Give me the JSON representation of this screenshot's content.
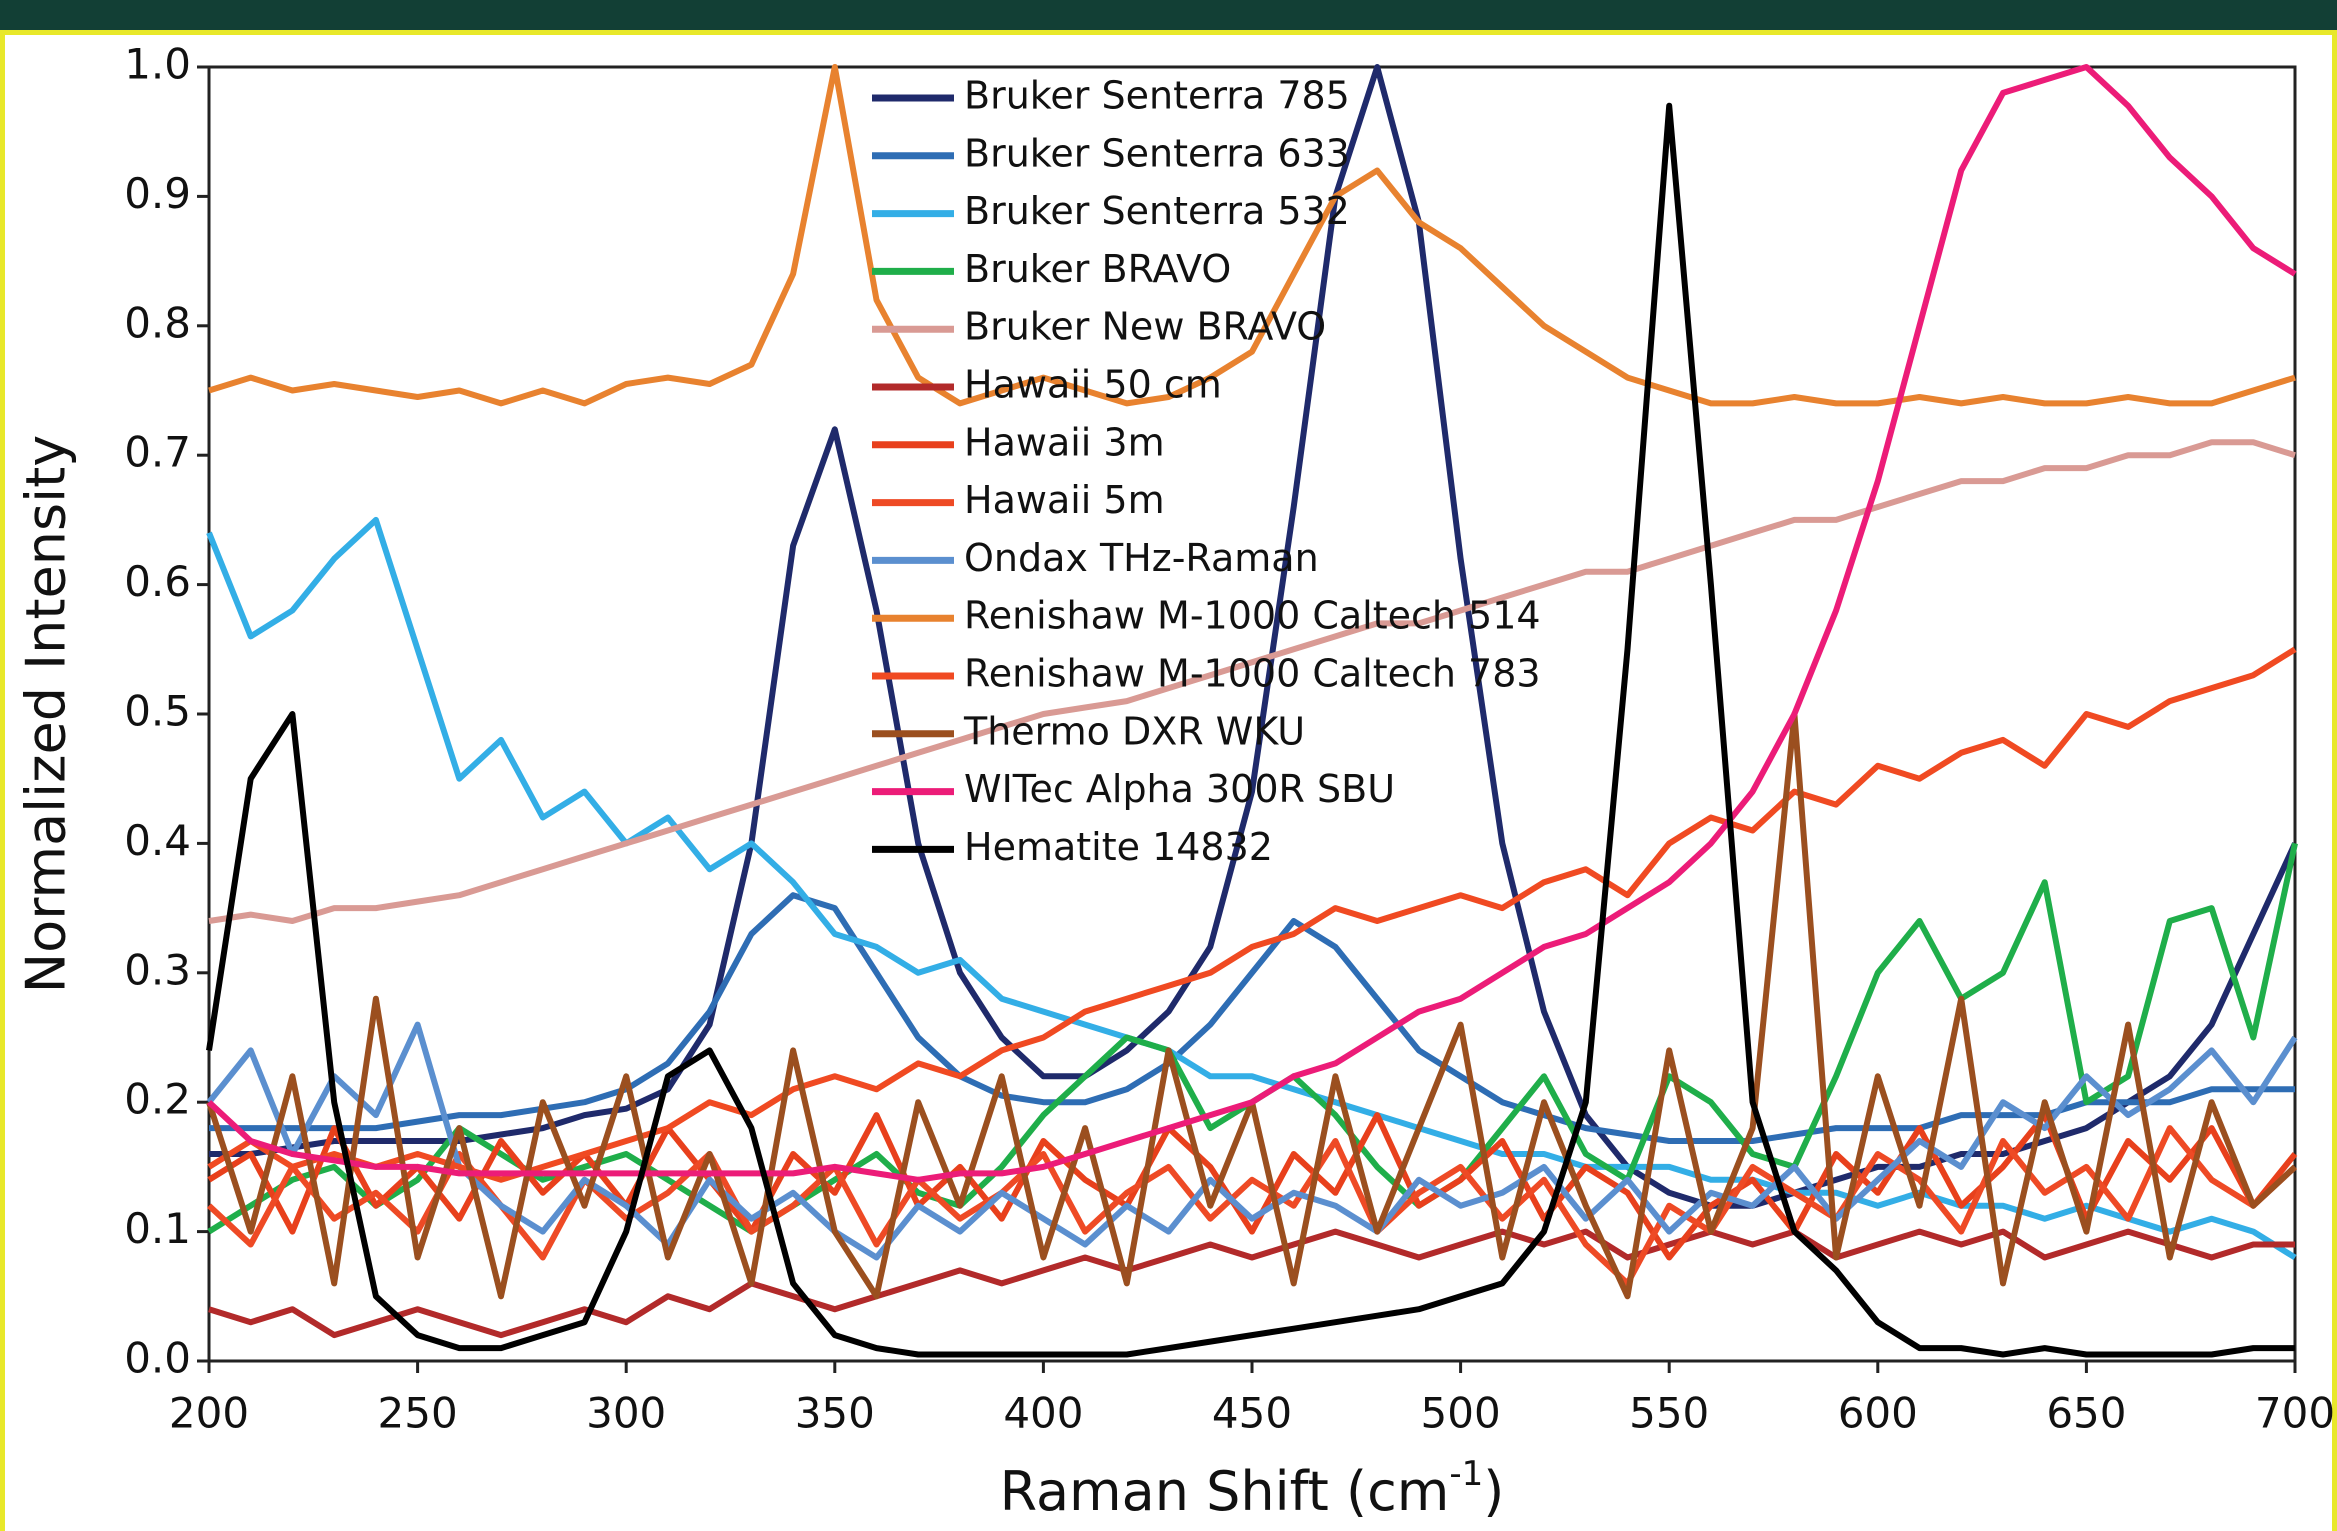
{
  "chart_data": {
    "type": "line",
    "x_label": "Raman Shift (cm",
    "x_label_sup": "-1",
    "x_label_end": ")",
    "y_label": "Normalized Intensity",
    "xlim": [
      200,
      700
    ],
    "ylim": [
      0,
      1
    ],
    "xticks": [
      200,
      250,
      300,
      350,
      400,
      450,
      500,
      550,
      600,
      650,
      700
    ],
    "yticks": [
      {
        "value": 0,
        "label": "0.0"
      },
      0.1,
      0.2,
      0.3,
      0.4,
      0.5,
      0.6,
      0.7,
      0.8,
      0.9,
      {
        "value": 1,
        "label": "1.0"
      }
    ],
    "x": [
      200,
      210,
      220,
      230,
      240,
      250,
      260,
      270,
      280,
      290,
      300,
      310,
      320,
      330,
      340,
      350,
      360,
      370,
      380,
      390,
      400,
      410,
      420,
      430,
      440,
      450,
      460,
      470,
      480,
      490,
      500,
      510,
      520,
      530,
      540,
      550,
      560,
      570,
      580,
      590,
      600,
      610,
      620,
      630,
      640,
      650,
      660,
      670,
      680,
      690,
      700
    ],
    "series": [
      {
        "name": "Bruker Senterra 785",
        "color": "#1f2a6b",
        "values": [
          0.16,
          0.16,
          0.165,
          0.17,
          0.17,
          0.17,
          0.17,
          0.175,
          0.18,
          0.19,
          0.195,
          0.21,
          0.26,
          0.4,
          0.63,
          0.72,
          0.58,
          0.4,
          0.3,
          0.25,
          0.22,
          0.22,
          0.24,
          0.27,
          0.32,
          0.44,
          0.66,
          0.9,
          1.0,
          0.88,
          0.62,
          0.4,
          0.27,
          0.19,
          0.15,
          0.13,
          0.12,
          0.12,
          0.13,
          0.14,
          0.15,
          0.15,
          0.16,
          0.16,
          0.17,
          0.18,
          0.2,
          0.22,
          0.26,
          0.33,
          0.4
        ]
      },
      {
        "name": "Bruker Senterra 633",
        "color": "#2e6db4",
        "values": [
          0.18,
          0.18,
          0.18,
          0.18,
          0.18,
          0.185,
          0.19,
          0.19,
          0.195,
          0.2,
          0.21,
          0.23,
          0.27,
          0.33,
          0.36,
          0.35,
          0.3,
          0.25,
          0.22,
          0.205,
          0.2,
          0.2,
          0.21,
          0.23,
          0.26,
          0.3,
          0.34,
          0.32,
          0.28,
          0.24,
          0.22,
          0.2,
          0.19,
          0.18,
          0.175,
          0.17,
          0.17,
          0.17,
          0.175,
          0.18,
          0.18,
          0.18,
          0.19,
          0.19,
          0.19,
          0.2,
          0.2,
          0.2,
          0.21,
          0.21,
          0.21
        ]
      },
      {
        "name": "Bruker Senterra 532",
        "color": "#33aee6",
        "values": [
          0.64,
          0.56,
          0.58,
          0.62,
          0.65,
          0.55,
          0.45,
          0.48,
          0.42,
          0.44,
          0.4,
          0.42,
          0.38,
          0.4,
          0.37,
          0.33,
          0.32,
          0.3,
          0.31,
          0.28,
          0.27,
          0.26,
          0.25,
          0.24,
          0.22,
          0.22,
          0.21,
          0.2,
          0.19,
          0.18,
          0.17,
          0.16,
          0.16,
          0.15,
          0.15,
          0.15,
          0.14,
          0.14,
          0.13,
          0.13,
          0.12,
          0.13,
          0.12,
          0.12,
          0.11,
          0.12,
          0.11,
          0.1,
          0.11,
          0.1,
          0.08
        ]
      },
      {
        "name": "Bruker BRAVO",
        "color": "#1fae4a",
        "values": [
          0.1,
          0.12,
          0.14,
          0.15,
          0.12,
          0.14,
          0.18,
          0.16,
          0.14,
          0.15,
          0.16,
          0.14,
          0.12,
          0.1,
          0.12,
          0.14,
          0.16,
          0.13,
          0.12,
          0.15,
          0.19,
          0.22,
          0.25,
          0.24,
          0.18,
          0.2,
          0.22,
          0.19,
          0.15,
          0.12,
          0.14,
          0.18,
          0.22,
          0.16,
          0.14,
          0.22,
          0.2,
          0.16,
          0.15,
          0.22,
          0.3,
          0.34,
          0.28,
          0.3,
          0.37,
          0.2,
          0.22,
          0.34,
          0.35,
          0.25,
          0.4
        ]
      },
      {
        "name": "Bruker New BRAVO",
        "color": "#d99a94",
        "values": [
          0.34,
          0.345,
          0.34,
          0.35,
          0.35,
          0.355,
          0.36,
          0.37,
          0.38,
          0.39,
          0.4,
          0.41,
          0.42,
          0.43,
          0.44,
          0.45,
          0.46,
          0.47,
          0.48,
          0.49,
          0.5,
          0.505,
          0.51,
          0.52,
          0.53,
          0.54,
          0.55,
          0.56,
          0.57,
          0.57,
          0.58,
          0.59,
          0.6,
          0.61,
          0.61,
          0.62,
          0.63,
          0.64,
          0.65,
          0.65,
          0.66,
          0.67,
          0.68,
          0.68,
          0.69,
          0.69,
          0.7,
          0.7,
          0.71,
          0.71,
          0.7
        ]
      },
      {
        "name": "Hawaii 50 cm",
        "color": "#b22a2a",
        "values": [
          0.04,
          0.03,
          0.04,
          0.02,
          0.03,
          0.04,
          0.03,
          0.02,
          0.03,
          0.04,
          0.03,
          0.05,
          0.04,
          0.06,
          0.05,
          0.04,
          0.05,
          0.06,
          0.07,
          0.06,
          0.07,
          0.08,
          0.07,
          0.08,
          0.09,
          0.08,
          0.09,
          0.1,
          0.09,
          0.08,
          0.09,
          0.1,
          0.09,
          0.1,
          0.08,
          0.09,
          0.1,
          0.09,
          0.1,
          0.08,
          0.09,
          0.1,
          0.09,
          0.1,
          0.08,
          0.09,
          0.1,
          0.09,
          0.08,
          0.09,
          0.09
        ]
      },
      {
        "name": "Hawaii 3m",
        "color": "#e8401c",
        "values": [
          0.14,
          0.16,
          0.1,
          0.18,
          0.12,
          0.15,
          0.11,
          0.17,
          0.13,
          0.16,
          0.12,
          0.18,
          0.14,
          0.1,
          0.16,
          0.13,
          0.19,
          0.12,
          0.15,
          0.11,
          0.17,
          0.14,
          0.12,
          0.18,
          0.15,
          0.1,
          0.16,
          0.13,
          0.19,
          0.12,
          0.14,
          0.17,
          0.11,
          0.15,
          0.13,
          0.08,
          0.12,
          0.14,
          0.1,
          0.16,
          0.13,
          0.18,
          0.12,
          0.15,
          0.19,
          0.11,
          0.17,
          0.14,
          0.18,
          0.12,
          0.16
        ]
      },
      {
        "name": "Hawaii 5m",
        "color": "#ee4a25",
        "values": [
          0.12,
          0.09,
          0.15,
          0.11,
          0.13,
          0.1,
          0.16,
          0.12,
          0.08,
          0.14,
          0.11,
          0.13,
          0.16,
          0.1,
          0.12,
          0.15,
          0.09,
          0.14,
          0.11,
          0.13,
          0.16,
          0.1,
          0.13,
          0.15,
          0.11,
          0.14,
          0.12,
          0.17,
          0.1,
          0.13,
          0.15,
          0.11,
          0.14,
          0.09,
          0.06,
          0.12,
          0.1,
          0.15,
          0.13,
          0.11,
          0.16,
          0.14,
          0.1,
          0.17,
          0.13,
          0.15,
          0.11,
          0.18,
          0.14,
          0.12,
          0.15
        ]
      },
      {
        "name": "Ondax THz-Raman",
        "color": "#5b8fcf",
        "values": [
          0.2,
          0.24,
          0.16,
          0.22,
          0.19,
          0.26,
          0.15,
          0.12,
          0.1,
          0.14,
          0.12,
          0.09,
          0.14,
          0.11,
          0.13,
          0.1,
          0.08,
          0.12,
          0.1,
          0.13,
          0.11,
          0.09,
          0.12,
          0.1,
          0.14,
          0.11,
          0.13,
          0.12,
          0.1,
          0.14,
          0.12,
          0.13,
          0.15,
          0.11,
          0.14,
          0.1,
          0.13,
          0.12,
          0.15,
          0.11,
          0.14,
          0.17,
          0.15,
          0.2,
          0.18,
          0.22,
          0.19,
          0.21,
          0.24,
          0.2,
          0.25
        ]
      },
      {
        "name": "Renishaw M-1000 Caltech 514",
        "color": "#e8822f",
        "values": [
          0.75,
          0.76,
          0.75,
          0.755,
          0.75,
          0.745,
          0.75,
          0.74,
          0.75,
          0.74,
          0.755,
          0.76,
          0.755,
          0.77,
          0.84,
          1.0,
          0.82,
          0.76,
          0.74,
          0.75,
          0.76,
          0.75,
          0.74,
          0.745,
          0.76,
          0.78,
          0.84,
          0.9,
          0.92,
          0.88,
          0.86,
          0.83,
          0.8,
          0.78,
          0.76,
          0.75,
          0.74,
          0.74,
          0.745,
          0.74,
          0.74,
          0.745,
          0.74,
          0.745,
          0.74,
          0.74,
          0.745,
          0.74,
          0.74,
          0.75,
          0.76
        ]
      },
      {
        "name": "Renishaw M-1000 Caltech 783",
        "color": "#f04a22",
        "values": [
          0.15,
          0.17,
          0.15,
          0.16,
          0.15,
          0.16,
          0.15,
          0.14,
          0.15,
          0.16,
          0.17,
          0.18,
          0.2,
          0.19,
          0.21,
          0.22,
          0.21,
          0.23,
          0.22,
          0.24,
          0.25,
          0.27,
          0.28,
          0.29,
          0.3,
          0.32,
          0.33,
          0.35,
          0.34,
          0.35,
          0.36,
          0.35,
          0.37,
          0.38,
          0.36,
          0.4,
          0.42,
          0.41,
          0.44,
          0.43,
          0.46,
          0.45,
          0.47,
          0.48,
          0.46,
          0.5,
          0.49,
          0.51,
          0.52,
          0.53,
          0.55
        ]
      },
      {
        "name": "Thermo DXR WKU",
        "color": "#9b4f1f",
        "values": [
          0.2,
          0.1,
          0.22,
          0.06,
          0.28,
          0.08,
          0.18,
          0.05,
          0.2,
          0.12,
          0.22,
          0.08,
          0.16,
          0.06,
          0.24,
          0.1,
          0.05,
          0.2,
          0.12,
          0.22,
          0.08,
          0.18,
          0.06,
          0.24,
          0.12,
          0.2,
          0.06,
          0.22,
          0.1,
          0.18,
          0.26,
          0.08,
          0.2,
          0.12,
          0.05,
          0.24,
          0.1,
          0.18,
          0.5,
          0.08,
          0.22,
          0.12,
          0.28,
          0.06,
          0.2,
          0.1,
          0.26,
          0.08,
          0.2,
          0.12,
          0.15
        ]
      },
      {
        "name": "WITec Alpha 300R SBU",
        "color": "#ec1c78",
        "values": [
          0.2,
          0.17,
          0.16,
          0.155,
          0.15,
          0.15,
          0.145,
          0.145,
          0.145,
          0.145,
          0.145,
          0.145,
          0.145,
          0.145,
          0.145,
          0.15,
          0.145,
          0.14,
          0.145,
          0.145,
          0.15,
          0.16,
          0.17,
          0.18,
          0.19,
          0.2,
          0.22,
          0.23,
          0.25,
          0.27,
          0.28,
          0.3,
          0.32,
          0.33,
          0.35,
          0.37,
          0.4,
          0.44,
          0.5,
          0.58,
          0.68,
          0.8,
          0.92,
          0.98,
          0.99,
          1.0,
          0.97,
          0.93,
          0.9,
          0.86,
          0.84
        ]
      },
      {
        "name": "Hematite 14832",
        "color": "#000000",
        "values": [
          0.24,
          0.45,
          0.5,
          0.2,
          0.05,
          0.02,
          0.01,
          0.01,
          0.02,
          0.03,
          0.1,
          0.22,
          0.24,
          0.18,
          0.06,
          0.02,
          0.01,
          0.005,
          0.005,
          0.005,
          0.005,
          0.005,
          0.005,
          0.01,
          0.015,
          0.02,
          0.025,
          0.03,
          0.035,
          0.04,
          0.05,
          0.06,
          0.1,
          0.2,
          0.55,
          0.97,
          0.6,
          0.2,
          0.1,
          0.07,
          0.03,
          0.01,
          0.01,
          0.005,
          0.01,
          0.005,
          0.005,
          0.005,
          0.005,
          0.01,
          0.01
        ]
      }
    ]
  }
}
